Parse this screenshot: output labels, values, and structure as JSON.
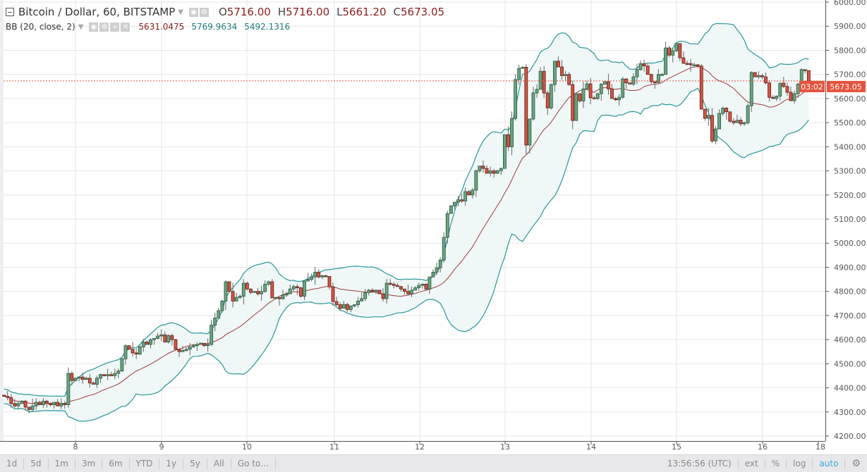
{
  "legend": {
    "title": "Bitcoin / Dollar, 60, BITSTAMP",
    "ohlc": [
      {
        "k": "O",
        "v": "5716.00"
      },
      {
        "k": "H",
        "v": "5716.00"
      },
      {
        "k": "L",
        "v": "5661.20"
      },
      {
        "k": "C",
        "v": "5673.05"
      }
    ],
    "indicator": "BB (20, close, 2)",
    "indicator_values": [
      "5631.0475",
      "5769.9634",
      "5492.1316"
    ]
  },
  "price_axis": {
    "ticks": [
      "6000.00",
      "5900.00",
      "5800.00",
      "5700.00",
      "5600.00",
      "5500.00",
      "5400.00",
      "5300.00",
      "5200.00",
      "5100.00",
      "5000.00",
      "4900.00",
      "4800.00",
      "4700.00",
      "4600.00",
      "4500.00",
      "4400.00",
      "4300.00",
      "4200.00"
    ],
    "last_price": "5673.05",
    "countdown": "03:02"
  },
  "time_axis": {
    "ticks": [
      "8",
      "9",
      "10",
      "11",
      "12",
      "13",
      "14",
      "15",
      "16",
      "18:00"
    ]
  },
  "toolbar": {
    "ranges": [
      "1d",
      "5d",
      "1m",
      "3m",
      "6m",
      "YTD",
      "1y",
      "5y",
      "All"
    ],
    "goto": "Go to...",
    "clock": "13:56:56 (UTC)",
    "ext": "ext",
    "percent": "%",
    "log": "log",
    "auto": "auto"
  },
  "colors": {
    "up": "#6ba583",
    "down": "#d75442",
    "band": "#2a9797",
    "basis": "#9e3b3b",
    "last_price": "#e5533c"
  },
  "chart_data": {
    "type": "candlestick",
    "symbol": "Bitcoin / Dollar",
    "interval": "60",
    "exchange": "BITSTAMP",
    "ylim": [
      4200,
      6000
    ],
    "indicator": {
      "type": "bollinger",
      "length": 20,
      "source": "close",
      "mult": 2
    },
    "last_candle": {
      "open": 5716.0,
      "high": 5716.0,
      "low": 5661.2,
      "close": 5673.05
    },
    "closes": [
      4365,
      4360,
      4335,
      4325,
      4335,
      4345,
      4320,
      4310,
      4325,
      4340,
      4330,
      4345,
      4335,
      4330,
      4340,
      4325,
      4335,
      4330,
      4460,
      4430,
      4440,
      4445,
      4435,
      4440,
      4420,
      4415,
      4440,
      4455,
      4450,
      4455,
      4450,
      4460,
      4470,
      4520,
      4575,
      4560,
      4545,
      4540,
      4570,
      4590,
      4580,
      4600,
      4605,
      4615,
      4620,
      4590,
      4617,
      4600,
      4560,
      4550,
      4555,
      4560,
      4570,
      4575,
      4580,
      4585,
      4575,
      4580,
      4660,
      4690,
      4720,
      4760,
      4840,
      4800,
      4760,
      4775,
      4780,
      4834,
      4810,
      4796,
      4800,
      4790,
      4800,
      4830,
      4840,
      4773,
      4775,
      4770,
      4785,
      4790,
      4810,
      4820,
      4815,
      4780,
      4843,
      4850,
      4860,
      4880,
      4860,
      4865,
      4862,
      4819,
      4758,
      4745,
      4730,
      4746,
      4725,
      4740,
      4745,
      4760,
      4770,
      4795,
      4805,
      4800,
      4805,
      4790,
      4770,
      4834,
      4830,
      4825,
      4820,
      4810,
      4800,
      4790,
      4805,
      4815,
      4825,
      4830,
      4810,
      4860,
      4880,
      4898,
      4930,
      5024,
      5123,
      5155,
      5170,
      5180,
      5175,
      5214,
      5200,
      5220,
      5300,
      5320,
      5310,
      5290,
      5300,
      5290,
      5301,
      5310,
      5450,
      5400,
      5517,
      5679,
      5725,
      5730,
      5407,
      5515,
      5623,
      5638,
      5713,
      5623,
      5561,
      5658,
      5755,
      5731,
      5695,
      5700,
      5658,
      5509,
      5620,
      5590,
      5640,
      5661,
      5603,
      5600,
      5620,
      5660,
      5670,
      5640,
      5600,
      5595,
      5605,
      5681,
      5665,
      5660,
      5690,
      5720,
      5745,
      5735,
      5700,
      5670,
      5667,
      5700,
      5700,
      5810,
      5780,
      5798,
      5828,
      5769,
      5746,
      5745,
      5740,
      5740,
      5735,
      5556,
      5518,
      5530,
      5424,
      5474,
      5538,
      5560,
      5545,
      5506,
      5500,
      5510,
      5495,
      5500,
      5570,
      5708,
      5690,
      5695,
      5690,
      5665,
      5605,
      5600,
      5610,
      5664,
      5650,
      5626,
      5591,
      5620,
      5660,
      5720,
      5716,
      5673.05
    ]
  }
}
